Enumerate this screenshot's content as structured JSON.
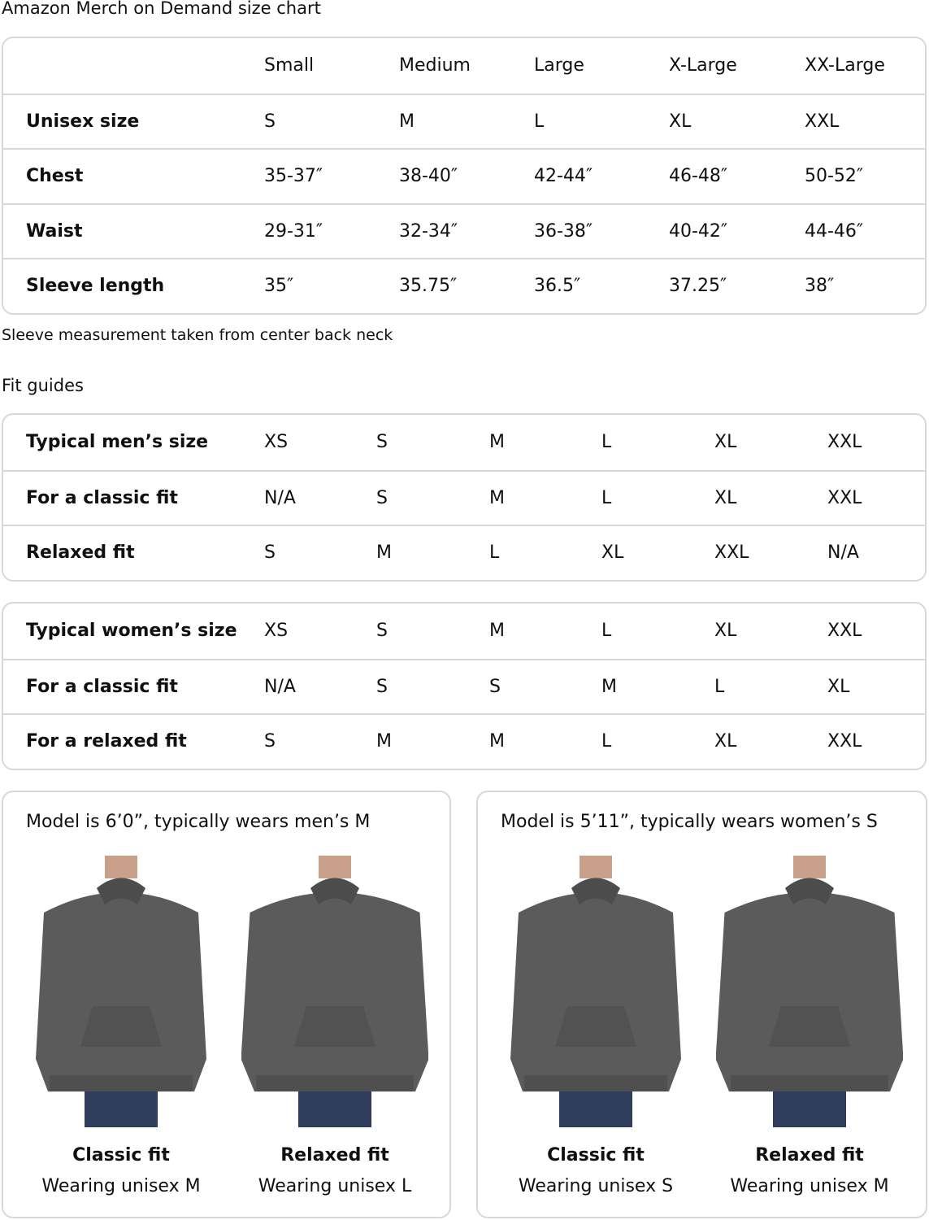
{
  "title": "Amazon Merch on Demand size chart",
  "size_chart": {
    "headers": [
      "",
      "Small",
      "Medium",
      "Large",
      "X-Large",
      "XX-Large"
    ],
    "rows": [
      [
        "Unisex size",
        "S",
        "M",
        "L",
        "XL",
        "XXL"
      ],
      [
        "Chest",
        "35-37″",
        "38-40″",
        "42-44″",
        "46-48″",
        "50-52″"
      ],
      [
        "Waist",
        "29-31″",
        "32-34″",
        "36-38″",
        "40-42″",
        "44-46″"
      ],
      [
        "Sleeve length",
        "35″",
        "35.75″",
        "36.5″",
        "37.25″",
        "38″"
      ]
    ]
  },
  "sleeve_note": "Sleeve measurement taken from center back neck",
  "fit_guides_title": "Fit guides",
  "mens_fit": [
    [
      "Typical men’s size",
      "XS",
      "S",
      "M",
      "L",
      "XL",
      "XXL"
    ],
    [
      "For a classic fit",
      "N/A",
      "S",
      "M",
      "L",
      "XL",
      "XXL"
    ],
    [
      "Relaxed fit",
      "S",
      "M",
      "L",
      "XL",
      "XXL",
      "N/A"
    ]
  ],
  "womens_fit": [
    [
      "Typical women’s size",
      "XS",
      "S",
      "M",
      "L",
      "XL",
      "XXL"
    ],
    [
      "For a classic fit",
      "N/A",
      "S",
      "S",
      "M",
      "L",
      "XL"
    ],
    [
      "For a relaxed fit",
      "S",
      "M",
      "M",
      "L",
      "XL",
      "XXL"
    ]
  ],
  "models": [
    {
      "title": "Model is 6’0”, typically wears men’s M",
      "figures": [
        {
          "name": "Classic fit",
          "sub": "Wearing unisex M"
        },
        {
          "name": "Relaxed fit",
          "sub": "Wearing unisex L"
        }
      ]
    },
    {
      "title": "Model is 5’11”, typically wears women’s S",
      "figures": [
        {
          "name": "Classic fit",
          "sub": "Wearing unisex S"
        },
        {
          "name": "Relaxed fit",
          "sub": "Wearing unisex M"
        }
      ]
    }
  ],
  "colors": {
    "border": "#d5d9d9",
    "text": "#0f1111",
    "hoodie": "#5b5b5b",
    "jeans": "#2e3e5c"
  }
}
